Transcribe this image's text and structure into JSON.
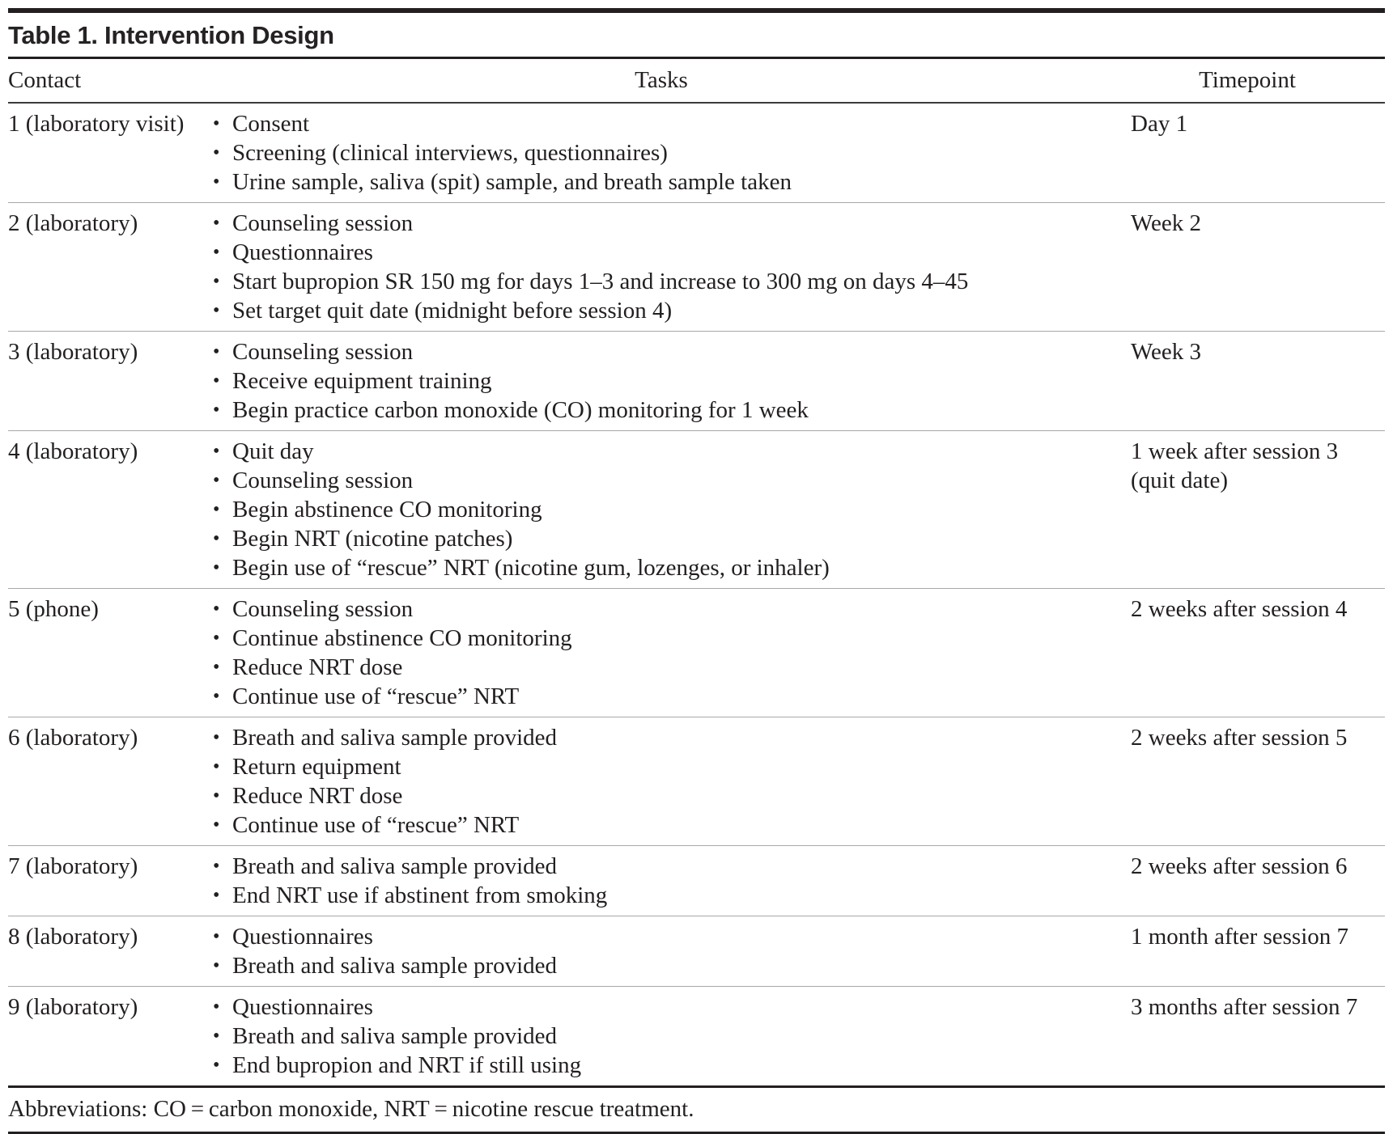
{
  "bullet": "•",
  "colors": {
    "text": "#231f20",
    "heavy_rule": "#231f20",
    "header_rule": "#3b3b3b",
    "light_rule": "#a8a8a8",
    "background": "#ffffff"
  },
  "table": {
    "title": "Table 1. Intervention Design",
    "columns": {
      "contact": "Contact",
      "tasks": "Tasks",
      "timepoint": "Timepoint"
    },
    "rows": [
      {
        "contact": "1 (laboratory visit)",
        "tasks": [
          "Consent",
          "Screening (clinical interviews, questionnaires)",
          "Urine sample, saliva (spit) sample, and breath sample taken"
        ],
        "timepoint": "Day 1"
      },
      {
        "contact": "2 (laboratory)",
        "tasks": [
          "Counseling session",
          "Questionnaires",
          "Start bupropion SR 150 mg for days 1–3 and increase to 300 mg on days 4–45",
          "Set target quit date (midnight before session 4)"
        ],
        "timepoint": "Week 2"
      },
      {
        "contact": "3 (laboratory)",
        "tasks": [
          "Counseling session",
          "Receive equipment training",
          "Begin practice carbon monoxide (CO) monitoring for 1 week"
        ],
        "timepoint": "Week 3"
      },
      {
        "contact": "4 (laboratory)",
        "tasks": [
          "Quit day",
          "Counseling session",
          "Begin abstinence CO monitoring",
          "Begin NRT (nicotine patches)",
          "Begin use of “rescue” NRT (nicotine gum, lozenges, or inhaler)"
        ],
        "timepoint": "1 week after session 3 (quit date)"
      },
      {
        "contact": "5 (phone)",
        "tasks": [
          "Counseling session",
          "Continue abstinence CO monitoring",
          "Reduce NRT dose",
          "Continue use of “rescue” NRT"
        ],
        "timepoint": "2 weeks after session 4"
      },
      {
        "contact": "6 (laboratory)",
        "tasks": [
          "Breath and saliva sample provided",
          "Return equipment",
          "Reduce NRT dose",
          "Continue use of “rescue” NRT"
        ],
        "timepoint": "2 weeks after session 5"
      },
      {
        "contact": "7 (laboratory)",
        "tasks": [
          "Breath and saliva sample provided",
          "End NRT use if abstinent from smoking"
        ],
        "timepoint": "2 weeks after session 6"
      },
      {
        "contact": "8 (laboratory)",
        "tasks": [
          "Questionnaires",
          "Breath and saliva sample provided"
        ],
        "timepoint": "1 month after session 7"
      },
      {
        "contact": "9 (laboratory)",
        "tasks": [
          "Questionnaires",
          "Breath and saliva sample provided",
          "End bupropion and NRT if still using"
        ],
        "timepoint": "3 months after session 7"
      }
    ],
    "footnote": "Abbreviations: CO = carbon monoxide, NRT = nicotine rescue treatment."
  }
}
